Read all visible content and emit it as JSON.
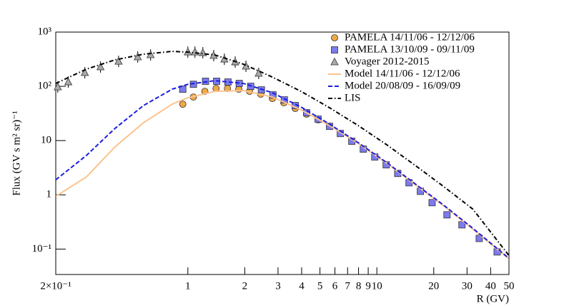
{
  "chart_data": {
    "type": "scatter",
    "xlabel": "R (GV)",
    "ylabel": "Flux (GV s m² sr)⁻¹",
    "xscale": "log",
    "yscale": "log",
    "xlim": [
      0.2,
      50
    ],
    "ylim": [
      0.034,
      1000
    ],
    "xticks": [
      {
        "value": 0.2,
        "label": "2×10⁻¹"
      },
      1,
      2,
      3,
      4,
      5,
      6,
      7,
      8,
      9,
      10,
      20,
      30,
      40,
      50
    ],
    "yticks": [
      {
        "value": 0.1,
        "label": "10⁻¹"
      },
      1,
      10,
      {
        "value": 100,
        "label": "10²"
      },
      {
        "value": 1000,
        "label": "10³"
      }
    ],
    "legend": "top-right",
    "series": [
      {
        "name": "PAMELA 14/11/06 - 12/12/06",
        "style": "circle",
        "color": "#f0a848",
        "x": [
          0.94,
          1.07,
          1.23,
          1.41,
          1.62,
          1.86,
          2.12,
          2.43,
          2.8,
          3.22,
          3.7,
          4.25,
          4.89
        ],
        "values": [
          46.9,
          63.5,
          80.9,
          91.4,
          91.4,
          88.5,
          80.9,
          71.7,
          59.7,
          49.8,
          39.1,
          30.7,
          24.1
        ]
      },
      {
        "name": "PAMELA 13/10/09 - 09/11/09",
        "style": "square",
        "color": "#7b7bee",
        "x": [
          0.94,
          1.07,
          1.24,
          1.42,
          1.63,
          1.87,
          2.15,
          2.45,
          2.82,
          3.24,
          3.7,
          4.25,
          4.89,
          5.62,
          6.41,
          7.37,
          8.48,
          9.75,
          11.2,
          12.9,
          14.8,
          17.0,
          19.6,
          23.5,
          28.2,
          34.8,
          43.3
        ],
        "values": [
          88.6,
          109,
          124,
          124,
          120,
          113,
          100,
          85.9,
          69.5,
          56.2,
          44.2,
          32.6,
          24.8,
          18.3,
          13.5,
          9.7,
          6.95,
          4.98,
          3.57,
          2.48,
          1.67,
          1.16,
          0.717,
          0.428,
          0.28,
          0.157,
          0.0886
        ]
      },
      {
        "name": "Voyager 2012-2015",
        "style": "triangle",
        "color": "#aaaaaa",
        "x": [
          0.205,
          0.233,
          0.285,
          0.345,
          0.43,
          0.543,
          0.635,
          1,
          1.09,
          1.2,
          1.37,
          1.56,
          1.78,
          2.03,
          2.37
        ],
        "values": [
          97,
          120,
          178,
          227,
          288,
          347,
          380,
          427,
          427,
          415,
          368,
          316,
          280,
          234,
          173
        ]
      },
      {
        "name": "Model 14/11/06 - 12/12/06",
        "style": "solid",
        "color": "#fbc48e",
        "x": [
          0.2,
          0.29,
          0.411,
          0.582,
          0.826,
          1,
          1.39,
          1.97,
          2.8,
          3.97,
          5.62,
          7.97,
          11.3,
          16.0,
          22.7,
          32.2,
          50
        ],
        "values": [
          0.94,
          2.13,
          7.62,
          21.3,
          46.9,
          61.5,
          80.9,
          83.4,
          63.5,
          36.8,
          18.9,
          8.86,
          3.79,
          1.53,
          0.616,
          0.234,
          0.0655
        ]
      },
      {
        "name": "Model 20/08/09 - 16/09/09",
        "style": "dashed",
        "color": "#1c1ce0",
        "x": [
          0.2,
          0.29,
          0.411,
          0.582,
          0.826,
          1,
          1.39,
          1.97,
          2.8,
          3.97,
          5.62,
          7.97,
          11.3,
          16.0,
          22.7,
          32.2,
          50
        ],
        "values": [
          1.89,
          5.29,
          16.7,
          44.2,
          88.6,
          109,
          127,
          113,
          76.2,
          41.5,
          20.1,
          9.14,
          3.91,
          1.58,
          0.635,
          0.241,
          0.0675
        ]
      },
      {
        "name": "LIS",
        "style": "dashdot",
        "color": "#000000",
        "x": [
          0.2,
          0.29,
          0.411,
          0.582,
          0.826,
          1,
          1.39,
          1.97,
          2.8,
          3.97,
          5.62,
          7.97,
          11.3,
          16.0,
          22.7,
          32.2,
          50
        ],
        "values": [
          113,
          207,
          307,
          391,
          441,
          427,
          379,
          256,
          148,
          80.9,
          40.3,
          18.9,
          8.34,
          3.46,
          1.4,
          0.545,
          0.076
        ]
      }
    ]
  }
}
